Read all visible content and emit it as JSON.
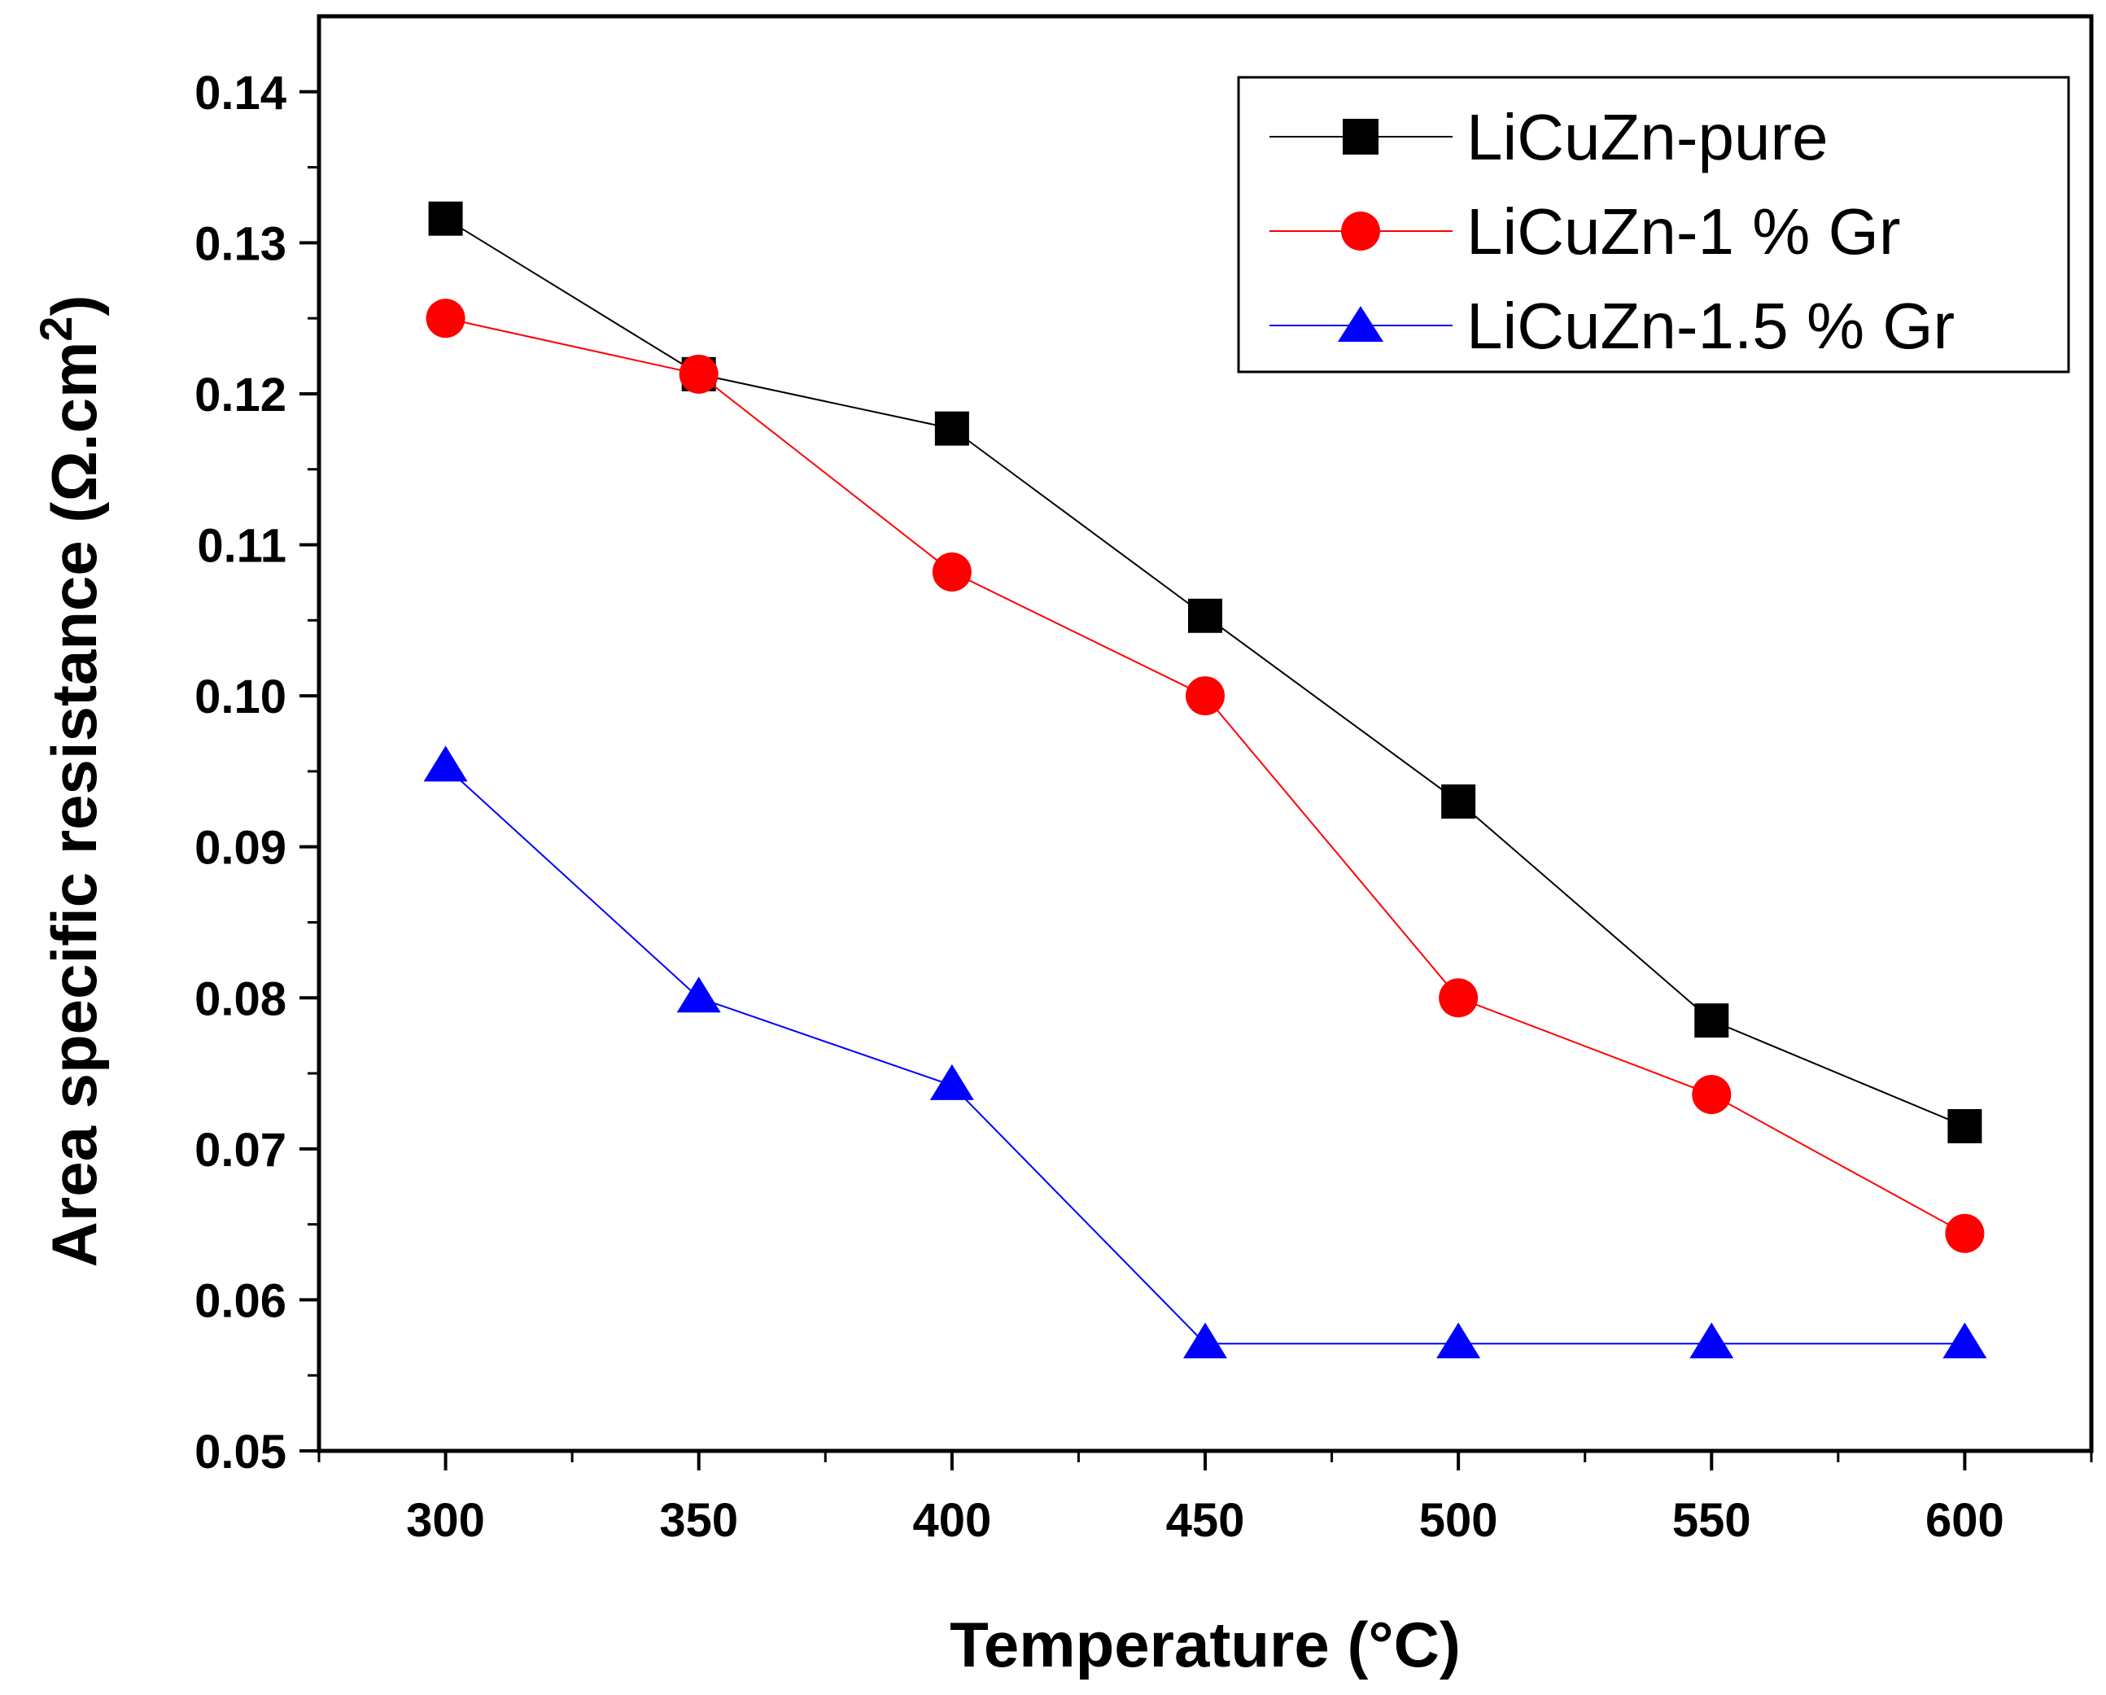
{
  "chart_data": {
    "type": "line",
    "title": "",
    "xlabel": "Temperature (°C)",
    "ylabel": "Area specific resistance (Ω.cm",
    "ylabel_superscript": "2",
    "ylabel_close": ")",
    "x": [
      300,
      350,
      400,
      450,
      500,
      550,
      600
    ],
    "xlim": [
      275,
      625
    ],
    "ylim": [
      0.05,
      0.145
    ],
    "xticks": [
      "300",
      "350",
      "400",
      "450",
      "500",
      "550",
      "600"
    ],
    "yticks": [
      "0.05",
      "0.06",
      "0.07",
      "0.08",
      "0.09",
      "0.10",
      "0.11",
      "0.12",
      "0.13",
      "0.14"
    ],
    "legend_position": "top-right",
    "grid": false,
    "series": [
      {
        "name": "LiCuZn-pure",
        "marker": "square",
        "color": "#000000",
        "values": [
          0.1316,
          0.1213,
          0.1177,
          0.1053,
          0.093,
          0.0785,
          0.0715
        ]
      },
      {
        "name": "LiCuZn-1 % Gr",
        "marker": "circle",
        "color": "#ff0000",
        "values": [
          0.125,
          0.1213,
          0.1082,
          0.1,
          0.08,
          0.0736,
          0.0644
        ]
      },
      {
        "name": "LiCuZn-1.5 % Gr",
        "marker": "triangle",
        "color": "#0000ff",
        "values": [
          0.0953,
          0.08,
          0.0742,
          0.0571,
          0.0571,
          0.0571,
          0.0571
        ]
      }
    ]
  }
}
